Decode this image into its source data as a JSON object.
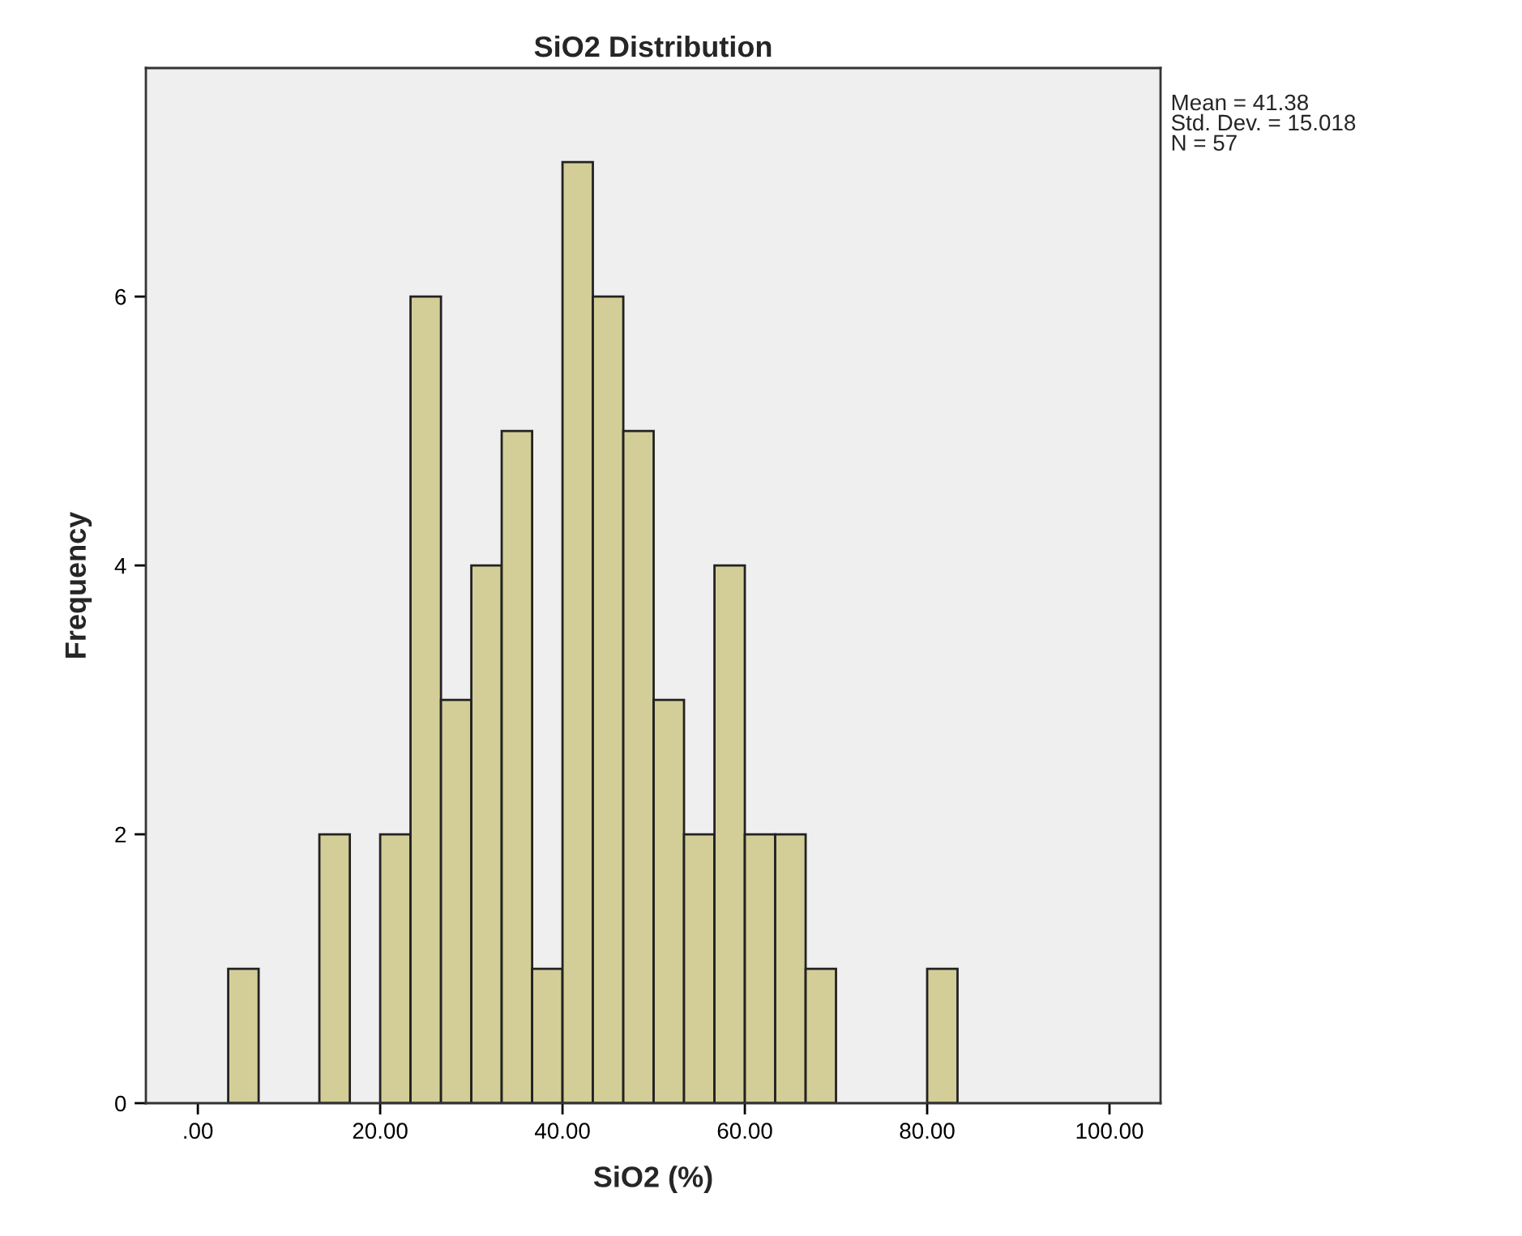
{
  "chart_data": {
    "type": "histogram",
    "title": "SiO2 Distribution",
    "xlabel": "SiO2 (%)",
    "ylabel": "Frequency",
    "bins": [
      3.33,
      6.67,
      10,
      13.33,
      16.67,
      20,
      23.33,
      26.67,
      30,
      33.33,
      36.67,
      40,
      43.33,
      46.67,
      50,
      53.33,
      56.67,
      60,
      63.33,
      66.67,
      70,
      73.33,
      76.67,
      80,
      83.33
    ],
    "values": [
      1,
      0,
      0,
      2,
      0,
      2,
      6,
      3,
      4,
      5,
      1,
      7,
      6,
      5,
      3,
      2,
      4,
      2,
      2,
      1,
      0,
      0,
      0,
      1
    ],
    "color": "#d3ce97",
    "xlim": [
      -5.7,
      105.6
    ],
    "xticks": [
      {
        "value": 0,
        "label": ".00"
      },
      {
        "value": 20,
        "label": "20.00"
      },
      {
        "value": 40,
        "label": "40.00"
      },
      {
        "value": 60,
        "label": "60.00"
      },
      {
        "value": 80,
        "label": "80.00"
      },
      {
        "value": 100,
        "label": "100.00"
      }
    ],
    "ylim": [
      0,
      7.7
    ],
    "yticks": [
      0,
      2,
      4,
      6
    ],
    "annotations": [
      "Mean = 41.38",
      "Std. Dev. = 15.018",
      "N = 57"
    ],
    "grid": false,
    "legend": false
  }
}
